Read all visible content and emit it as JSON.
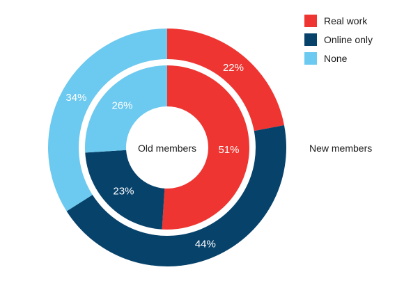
{
  "chart_data": {
    "type": "pie",
    "categories": [
      "Real work",
      "Online only",
      "None"
    ],
    "series": [
      {
        "name": "Old members",
        "values": [
          51,
          23,
          26
        ],
        "labels": [
          "51%",
          "23%",
          "26%"
        ]
      },
      {
        "name": "New members",
        "values": [
          22,
          44,
          34
        ],
        "labels": [
          "22%",
          "44%",
          "34%"
        ]
      }
    ],
    "legend": [
      "Real work",
      "Online only",
      "None"
    ],
    "colors": [
      "#ee3531",
      "#07426b",
      "#6cc9ef"
    ],
    "legend_position": "top-right"
  }
}
